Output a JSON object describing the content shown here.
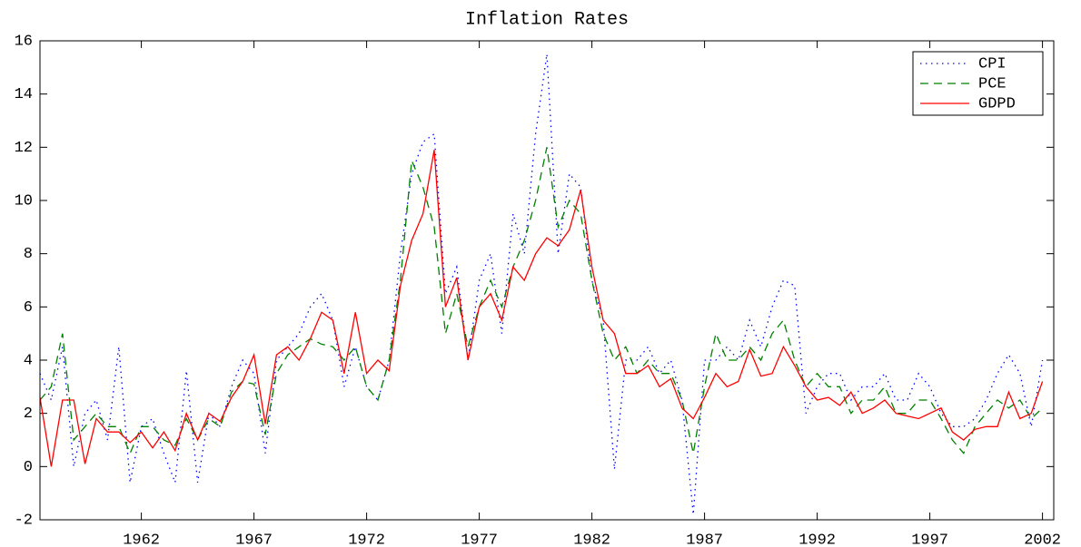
{
  "chart_data": {
    "type": "line",
    "title": "Inflation Rates",
    "x": [
      1957.5,
      1958,
      1958.5,
      1959,
      1959.5,
      1960,
      1960.5,
      1961,
      1961.5,
      1962,
      1962.5,
      1963,
      1963.5,
      1964,
      1964.5,
      1965,
      1965.5,
      1966,
      1966.5,
      1967,
      1967.5,
      1968,
      1968.5,
      1969,
      1969.5,
      1970,
      1970.5,
      1971,
      1971.5,
      1972,
      1972.5,
      1973,
      1973.5,
      1974,
      1974.5,
      1975,
      1975.5,
      1976,
      1976.5,
      1977,
      1977.5,
      1978,
      1978.5,
      1979,
      1979.5,
      1980,
      1980.5,
      1981,
      1981.5,
      1982,
      1982.5,
      1983,
      1983.5,
      1984,
      1984.5,
      1985,
      1985.5,
      1986,
      1986.5,
      1987,
      1987.5,
      1988,
      1988.5,
      1989,
      1989.5,
      1990,
      1990.5,
      1991,
      1991.5,
      1992,
      1992.5,
      1993,
      1993.5,
      1994,
      1994.5,
      1995,
      1995.5,
      1996,
      1996.5,
      1997,
      1997.5,
      1998,
      1998.5,
      1999,
      1999.5,
      2000,
      2000.5,
      2001,
      2001.5,
      2002
    ],
    "series": [
      {
        "name": "CPI",
        "color": "#0000ff",
        "linestyle": "dotted",
        "values": [
          3.5,
          2.5,
          4.5,
          0,
          2.0,
          2.5,
          1.0,
          4.5,
          -0.6,
          1.5,
          1.8,
          0.5,
          -0.6,
          3.6,
          -0.6,
          2.0,
          1.5,
          3.0,
          4.0,
          3.5,
          0.5,
          4.0,
          4.5,
          5.0,
          6.0,
          6.5,
          5.5,
          3.0,
          4.5,
          3.0,
          2.5,
          4.0,
          8.0,
          11.0,
          12.2,
          12.5,
          6.5,
          7.5,
          4.0,
          7.0,
          8.0,
          5.0,
          9.5,
          8.0,
          12.5,
          15.5,
          8.0,
          11.0,
          10.5,
          7.0,
          5.5,
          -0.1,
          4.0,
          4.0,
          4.5,
          3.5,
          4.0,
          2.5,
          -1.8,
          4.0,
          4.0,
          4.5,
          4.0,
          5.5,
          4.5,
          6.0,
          7.0,
          6.8,
          2.0,
          3.0,
          3.5,
          3.5,
          2.5,
          3.0,
          3.0,
          3.5,
          2.5,
          2.5,
          3.5,
          3.0,
          2.0,
          1.5,
          1.5,
          1.8,
          2.5,
          3.5,
          4.2,
          3.5,
          1.5,
          4.0
        ]
      },
      {
        "name": "PCE",
        "color": "#008000",
        "linestyle": "dashed",
        "values": [
          2.5,
          3.0,
          5.0,
          1.0,
          1.5,
          2.0,
          1.5,
          1.5,
          0.5,
          1.5,
          1.5,
          1.0,
          0.8,
          1.8,
          1.0,
          1.8,
          1.5,
          2.8,
          3.2,
          3.1,
          1.2,
          3.5,
          4.2,
          4.5,
          4.8,
          4.6,
          4.5,
          4.0,
          4.5,
          3.0,
          2.5,
          4.0,
          7.0,
          11.5,
          10.5,
          9.0,
          5.0,
          6.5,
          4.5,
          6.0,
          7.0,
          6.0,
          7.5,
          8.5,
          10.0,
          12.0,
          9.0,
          10.0,
          9.5,
          7.0,
          5.0,
          4.0,
          4.5,
          3.5,
          4.0,
          3.5,
          3.5,
          2.5,
          0.5,
          3.0,
          5.0,
          4.0,
          4.0,
          4.5,
          4.0,
          5.0,
          5.5,
          4.0,
          3.0,
          3.5,
          3.0,
          3.0,
          2.0,
          2.5,
          2.5,
          3.0,
          2.0,
          2.0,
          2.5,
          2.5,
          1.8,
          1.0,
          0.5,
          1.5,
          2.0,
          2.5,
          2.2,
          2.5,
          1.8,
          2.2
        ]
      },
      {
        "name": "GDPD",
        "color": "#ff0000",
        "linestyle": "solid",
        "values": [
          2.6,
          0,
          2.5,
          2.5,
          0.1,
          1.8,
          1.3,
          1.3,
          0.9,
          1.3,
          0.7,
          1.3,
          0.6,
          2.0,
          1.0,
          2.0,
          1.7,
          2.6,
          3.2,
          4.2,
          1.6,
          4.2,
          4.5,
          4.0,
          4.8,
          5.8,
          5.5,
          3.5,
          5.8,
          3.5,
          4.0,
          3.6,
          6.8,
          8.5,
          9.5,
          11.9,
          6.0,
          7.1,
          4.0,
          6.0,
          6.5,
          5.5,
          7.5,
          7.0,
          8.0,
          8.6,
          8.3,
          8.9,
          10.4,
          7.5,
          5.5,
          5.0,
          3.5,
          3.5,
          3.8,
          3.0,
          3.3,
          2.2,
          1.8,
          2.6,
          3.5,
          3.0,
          3.2,
          4.4,
          3.4,
          3.5,
          4.5,
          3.8,
          3.0,
          2.5,
          2.6,
          2.3,
          2.8,
          2.0,
          2.2,
          2.5,
          2.0,
          1.9,
          1.8,
          2.0,
          2.2,
          1.3,
          1.0,
          1.4,
          1.5,
          1.5,
          2.8,
          1.8,
          2.0,
          3.2
        ]
      }
    ],
    "xlim": [
      1957.5,
      2002.5
    ],
    "xticks": [
      1962,
      1967,
      1972,
      1977,
      1982,
      1987,
      1992,
      1997,
      2002
    ],
    "ylim": [
      -2,
      16
    ],
    "yticks": [
      -2,
      0,
      2,
      4,
      6,
      8,
      10,
      12,
      14,
      16
    ],
    "grid": false,
    "legend": "upper right"
  }
}
